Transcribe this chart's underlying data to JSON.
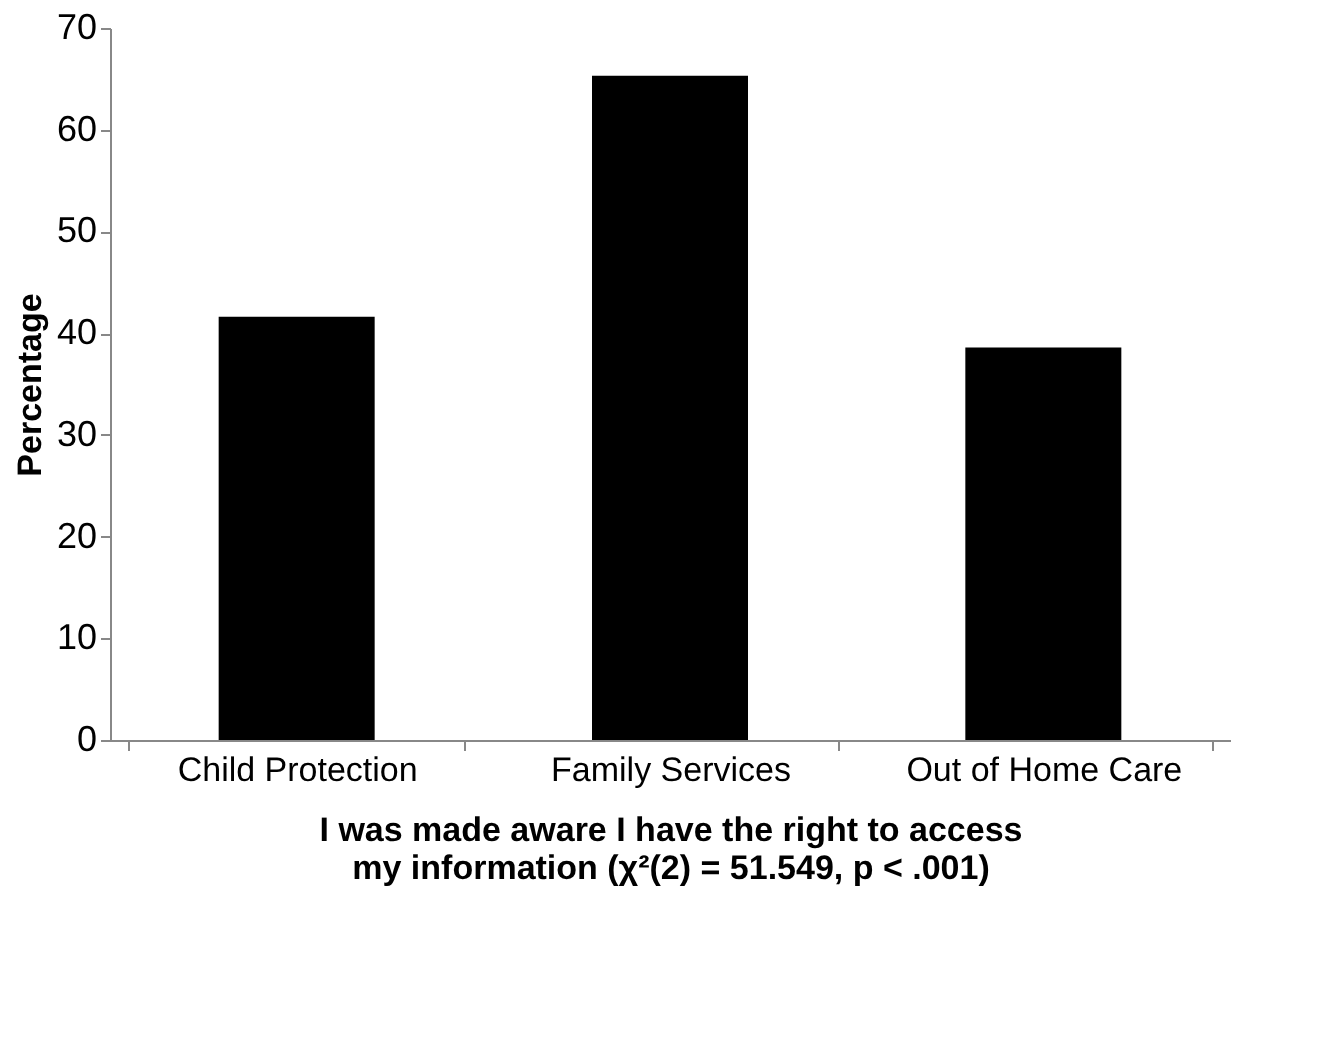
{
  "chart_data": {
    "type": "bar",
    "categories": [
      "Child Protection",
      "Family Services",
      "Out of Home Care"
    ],
    "values": [
      41.6,
      65.3,
      38.6
    ],
    "color": "#000000",
    "ylabel": "Percentage",
    "xlabel": "I was made aware I have the right to access my information (χ²(2) = 51.549, p < .001)",
    "ylim": [
      0,
      70
    ],
    "yticks": [
      0,
      10,
      20,
      30,
      40,
      50,
      60,
      70
    ],
    "grid": false
  }
}
